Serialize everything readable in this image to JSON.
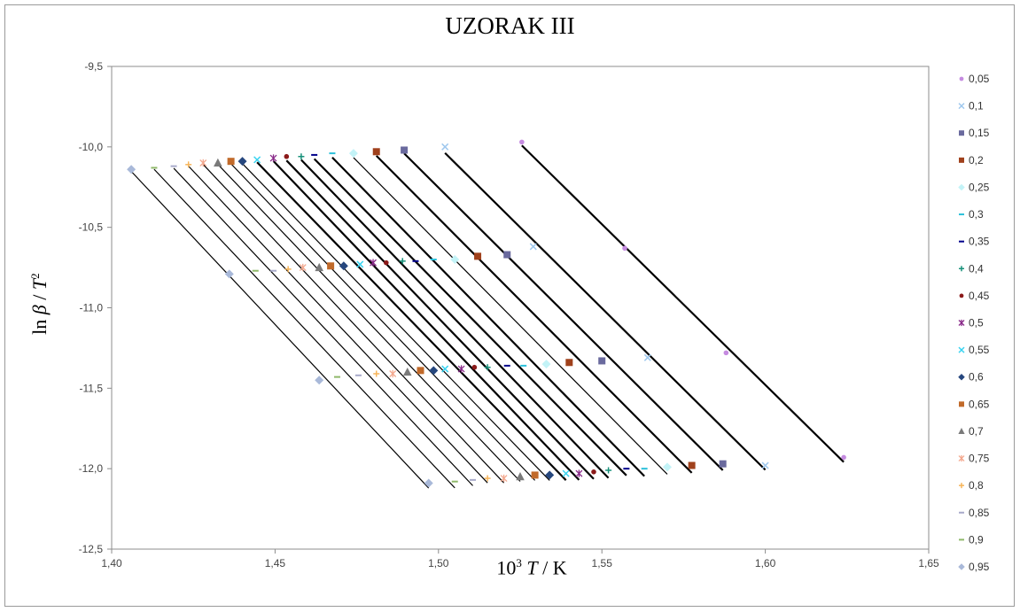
{
  "chart_data": {
    "type": "scatter",
    "title": "UZORAK III",
    "xlabel_parts": [
      "10",
      "3",
      " ",
      "T",
      " / K"
    ],
    "ylabel_parts": [
      "ln ",
      "β",
      " / ",
      "T",
      "2"
    ],
    "xlim": [
      1.4,
      1.65
    ],
    "ylim": [
      -12.5,
      -9.5
    ],
    "x_ticks": [
      "1,40",
      "1,45",
      "1,50",
      "1,55",
      "1,60",
      "1,65"
    ],
    "y_ticks": [
      "-9,5",
      "-10,0",
      "-10,5",
      "-11,0",
      "-11,5",
      "-12,0",
      "-12,5"
    ],
    "grid": false,
    "legend_position": "right",
    "series": [
      {
        "name": "0,05",
        "marker": "circle",
        "color": "#c58be0",
        "line_width": 2.2,
        "points": [
          [
            1.5255,
            -9.97
          ],
          [
            1.557,
            -10.63
          ],
          [
            1.588,
            -11.28
          ],
          [
            1.624,
            -11.93
          ]
        ]
      },
      {
        "name": "0,1",
        "marker": "x",
        "color": "#9fc8ee",
        "line_width": 2.2,
        "points": [
          [
            1.502,
            -10.0
          ],
          [
            1.529,
            -10.62
          ],
          [
            1.564,
            -11.31
          ],
          [
            1.6,
            -11.98
          ]
        ]
      },
      {
        "name": "0,15",
        "marker": "square",
        "color": "#6a6a9e",
        "line_width": 2.2,
        "points": [
          [
            1.4895,
            -10.02
          ],
          [
            1.521,
            -10.67
          ],
          [
            1.55,
            -11.33
          ],
          [
            1.587,
            -11.97
          ]
        ]
      },
      {
        "name": "0,2",
        "marker": "square",
        "color": "#a0411c",
        "line_width": 2.2,
        "points": [
          [
            1.481,
            -10.03
          ],
          [
            1.512,
            -10.68
          ],
          [
            1.54,
            -11.34
          ],
          [
            1.5775,
            -11.98
          ]
        ]
      },
      {
        "name": "0,25",
        "marker": "diamond",
        "color": "#c3f3f7",
        "line_width": 1.2,
        "points": [
          [
            1.474,
            -10.04
          ],
          [
            1.505,
            -10.7
          ],
          [
            1.533,
            -11.35
          ],
          [
            1.57,
            -11.99
          ]
        ]
      },
      {
        "name": "0,3",
        "marker": "dash",
        "color": "#2bc0da",
        "line_width": 2.2,
        "points": [
          [
            1.4675,
            -10.04
          ],
          [
            1.4985,
            -10.7
          ],
          [
            1.526,
            -11.36
          ],
          [
            1.563,
            -12.0
          ]
        ]
      },
      {
        "name": "0,35",
        "marker": "dash",
        "color": "#00008b",
        "line_width": 2.2,
        "points": [
          [
            1.462,
            -10.05
          ],
          [
            1.493,
            -10.71
          ],
          [
            1.521,
            -11.36
          ],
          [
            1.5575,
            -12.0
          ]
        ]
      },
      {
        "name": "0,4",
        "marker": "plus",
        "color": "#17917a",
        "line_width": 2.2,
        "points": [
          [
            1.458,
            -10.06
          ],
          [
            1.489,
            -10.71
          ],
          [
            1.515,
            -11.37
          ],
          [
            1.552,
            -12.01
          ]
        ]
      },
      {
        "name": "0,45",
        "marker": "circle",
        "color": "#8b1a1a",
        "line_width": 2.2,
        "points": [
          [
            1.4535,
            -10.06
          ],
          [
            1.484,
            -10.72
          ],
          [
            1.511,
            -11.37
          ],
          [
            1.5475,
            -12.02
          ]
        ]
      },
      {
        "name": "0,5",
        "marker": "star",
        "color": "#8a2b8a",
        "line_width": 2.2,
        "points": [
          [
            1.4495,
            -10.07
          ],
          [
            1.48,
            -10.72
          ],
          [
            1.507,
            -11.38
          ],
          [
            1.543,
            -12.03
          ]
        ]
      },
      {
        "name": "0,55",
        "marker": "x",
        "color": "#38d3f0",
        "line_width": 2.2,
        "points": [
          [
            1.4445,
            -10.08
          ],
          [
            1.476,
            -10.73
          ],
          [
            1.502,
            -11.38
          ],
          [
            1.539,
            -12.03
          ]
        ]
      },
      {
        "name": "0,6",
        "marker": "diamond",
        "color": "#26477e",
        "line_width": 1.2,
        "points": [
          [
            1.44,
            -10.09
          ],
          [
            1.471,
            -10.74
          ],
          [
            1.4985,
            -11.39
          ],
          [
            1.534,
            -12.04
          ]
        ]
      },
      {
        "name": "0,65",
        "marker": "square",
        "color": "#c16a2a",
        "line_width": 1.2,
        "points": [
          [
            1.4365,
            -10.09
          ],
          [
            1.467,
            -10.74
          ],
          [
            1.4945,
            -11.39
          ],
          [
            1.5295,
            -12.04
          ]
        ]
      },
      {
        "name": "0,7",
        "marker": "triangle",
        "color": "#7a7a7a",
        "line_width": 1.2,
        "points": [
          [
            1.4325,
            -10.1
          ],
          [
            1.4635,
            -10.75
          ],
          [
            1.4905,
            -11.4
          ],
          [
            1.525,
            -12.05
          ]
        ]
      },
      {
        "name": "0,75",
        "marker": "star",
        "color": "#f3a88e",
        "line_width": 1.2,
        "points": [
          [
            1.428,
            -10.1
          ],
          [
            1.4585,
            -10.75
          ],
          [
            1.486,
            -11.41
          ],
          [
            1.52,
            -12.06
          ]
        ]
      },
      {
        "name": "0,8",
        "marker": "plus",
        "color": "#f7b55a",
        "line_width": 1.2,
        "points": [
          [
            1.4235,
            -10.11
          ],
          [
            1.454,
            -10.76
          ],
          [
            1.481,
            -11.41
          ],
          [
            1.515,
            -12.06
          ]
        ]
      },
      {
        "name": "0,85",
        "marker": "dash",
        "color": "#a8aaca",
        "line_width": 1.2,
        "points": [
          [
            1.419,
            -10.12
          ],
          [
            1.4495,
            -10.77
          ],
          [
            1.4755,
            -11.42
          ],
          [
            1.5105,
            -12.07
          ]
        ]
      },
      {
        "name": "0,9",
        "marker": "dash",
        "color": "#8fb86a",
        "line_width": 1.2,
        "points": [
          [
            1.413,
            -10.13
          ],
          [
            1.444,
            -10.77
          ],
          [
            1.469,
            -11.43
          ],
          [
            1.505,
            -12.08
          ]
        ]
      },
      {
        "name": "0,95",
        "marker": "diamond",
        "color": "#a9b9d9",
        "line_width": 1.2,
        "points": [
          [
            1.406,
            -10.14
          ],
          [
            1.436,
            -10.79
          ],
          [
            1.4635,
            -11.45
          ],
          [
            1.497,
            -12.09
          ]
        ]
      }
    ]
  }
}
